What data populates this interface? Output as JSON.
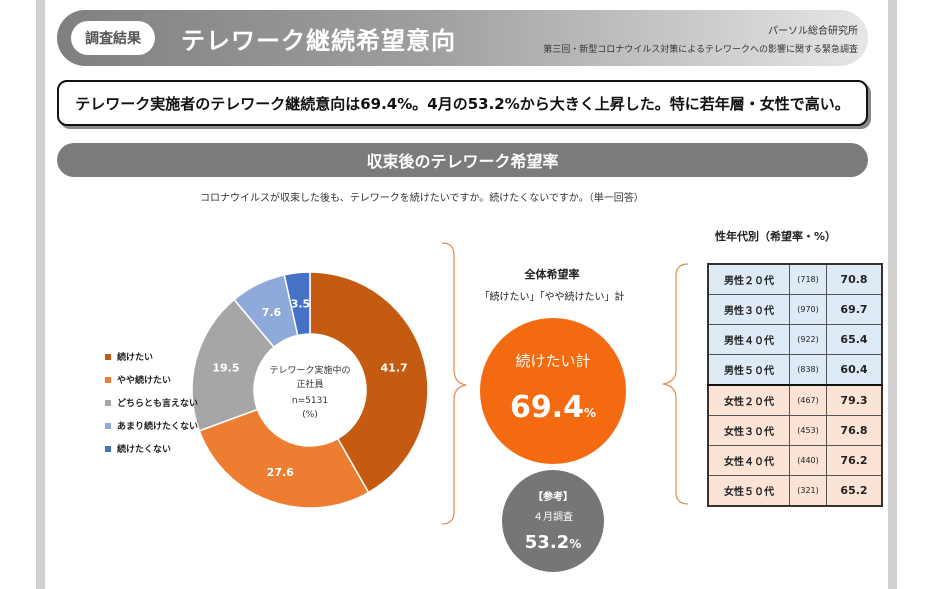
{
  "header": {
    "tag": "調査結果",
    "title": "テレワーク継続希望意向",
    "org": "パーソル総合研究所",
    "survey": "第三回・新型コロナウイルス対策によるテレワークへの影響に関する緊急調査"
  },
  "summary": "テレワーク実施者のテレワーク継続意向は69.4%。4月の53.2%から大きく上昇した。特に若年層・女性で高い。",
  "section_title": "収束後のテレワーク希望率",
  "question": "コロナウイルスが収束した後も、テレワークを続けたいですか。続けたくないですか。（単一回答）",
  "donut_center": {
    "line1": "テレワーク実施中の",
    "line2": "正社員",
    "line3": "n=5131",
    "line4": "(%)"
  },
  "total": {
    "title": "全体希望率",
    "subtitle": "「続けたい」「やや続けたい」計",
    "label": "続けたい計",
    "value": "69.4",
    "unit": "%"
  },
  "reference": {
    "title": "【参考】",
    "subtitle": "４月調査",
    "value": "53.2",
    "unit": "%"
  },
  "table": {
    "title": "性年代別（希望率・%）",
    "rows": [
      {
        "group": "男性２０代",
        "n": "(718)",
        "value": "70.8",
        "gender": "m"
      },
      {
        "group": "男性３０代",
        "n": "(970)",
        "value": "69.7",
        "gender": "m"
      },
      {
        "group": "男性４０代",
        "n": "(922)",
        "value": "65.4",
        "gender": "m"
      },
      {
        "group": "男性５０代",
        "n": "(838)",
        "value": "60.4",
        "gender": "m"
      },
      {
        "group": "女性２０代",
        "n": "(467)",
        "value": "79.3",
        "gender": "f"
      },
      {
        "group": "女性３０代",
        "n": "(453)",
        "value": "76.8",
        "gender": "f"
      },
      {
        "group": "女性４０代",
        "n": "(440)",
        "value": "76.2",
        "gender": "f"
      },
      {
        "group": "女性５０代",
        "n": "(321)",
        "value": "65.2",
        "gender": "f"
      }
    ]
  },
  "chart_data": {
    "type": "pie",
    "categories": [
      "続けたい",
      "やや続けたい",
      "どちらとも言えない",
      "あまり続けたくない",
      "続けたくない"
    ],
    "values": [
      41.7,
      27.6,
      19.5,
      7.6,
      3.5
    ],
    "colors": [
      "#c55a11",
      "#ed7d31",
      "#a6a6a6",
      "#8eaadb",
      "#4472c4"
    ],
    "donut": true,
    "legend": "left"
  }
}
